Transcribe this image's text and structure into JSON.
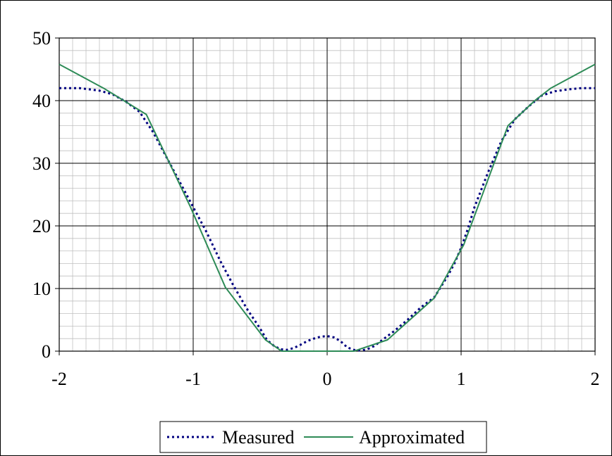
{
  "chart_data": {
    "type": "line",
    "title": "",
    "xlabel": "",
    "ylabel": "",
    "xlim": [
      -2,
      2
    ],
    "ylim": [
      0,
      50
    ],
    "x_ticks": [
      "-2",
      "-1",
      "0",
      "1",
      "2"
    ],
    "y_ticks": [
      "0",
      "10",
      "20",
      "30",
      "40",
      "50"
    ],
    "grid": "major and minor",
    "legend_position": "bottom",
    "series": [
      {
        "name": "Measured",
        "color": "#000080",
        "style": "dotted",
        "x": [
          -2.0,
          -1.85,
          -1.7,
          -1.6,
          -1.5,
          -1.4,
          -1.3,
          -1.2,
          -1.1,
          -1.0,
          -0.9,
          -0.8,
          -0.7,
          -0.6,
          -0.5,
          -0.45,
          -0.4,
          -0.35,
          -0.3,
          -0.25,
          -0.2,
          -0.15,
          -0.1,
          -0.05,
          0.0,
          0.05,
          0.1,
          0.15,
          0.2,
          0.25,
          0.3,
          0.35,
          0.4,
          0.5,
          0.6,
          0.7,
          0.8,
          0.85,
          0.9,
          0.95,
          1.0,
          1.05,
          1.1,
          1.2,
          1.3,
          1.4,
          1.5,
          1.6,
          1.7,
          1.8,
          1.9,
          2.0
        ],
        "y": [
          42.0,
          42.0,
          41.6,
          41.0,
          39.8,
          38.2,
          35.0,
          31.0,
          27.0,
          23.0,
          19.0,
          14.5,
          10.5,
          6.8,
          3.6,
          1.8,
          0.9,
          0.3,
          0.2,
          0.5,
          1.0,
          1.6,
          2.0,
          2.3,
          2.4,
          2.2,
          1.6,
          0.6,
          0.2,
          0.1,
          0.3,
          0.8,
          1.6,
          3.2,
          5.0,
          7.0,
          8.6,
          10.3,
          12.0,
          14.0,
          16.5,
          19.5,
          23.0,
          28.5,
          33.5,
          37.0,
          39.0,
          40.8,
          41.5,
          41.8,
          42.0,
          42.0
        ]
      },
      {
        "name": "Approximated",
        "color": "#2e8b57",
        "style": "solid",
        "x": [
          -2.0,
          -1.67,
          -1.35,
          -1.02,
          -0.76,
          -0.46,
          -0.34,
          0.0,
          0.2,
          0.45,
          0.8,
          1.02,
          1.35,
          1.55,
          1.67,
          2.0
        ],
        "y": [
          45.8,
          42.0,
          37.8,
          23.0,
          10.2,
          1.8,
          0.0,
          0.0,
          0.0,
          1.8,
          8.5,
          17.0,
          36.0,
          40.0,
          42.0,
          45.8
        ]
      }
    ]
  }
}
